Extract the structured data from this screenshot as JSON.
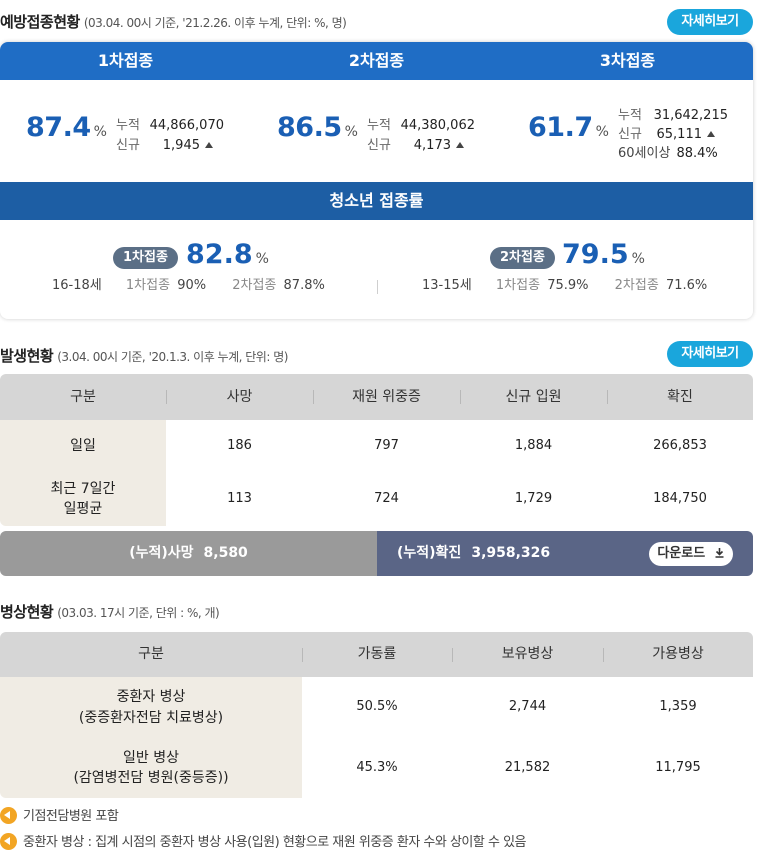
{
  "vaccination": {
    "title": "예방접종현황",
    "subtitle": "(03.04. 00시 기준, '21.2.26. 이후 누계, 단위: %, 명)",
    "more_label": "자세히보기",
    "doses": [
      {
        "header": "1차접종",
        "percent": "87.4",
        "unit": "%",
        "cum_label": "누적",
        "cum": "44,866,070",
        "new_label": "신규",
        "new": "1,945"
      },
      {
        "header": "2차접종",
        "percent": "86.5",
        "unit": "%",
        "cum_label": "누적",
        "cum": "44,380,062",
        "new_label": "신규",
        "new": "4,173"
      },
      {
        "header": "3차접종",
        "percent": "61.7",
        "unit": "%",
        "cum_label": "누적",
        "cum": "31,642,215",
        "new_label": "신규",
        "new": "65,111",
        "extra_label": "60세이상",
        "extra": "88.4%"
      }
    ],
    "teen": {
      "title": "청소년 접종률",
      "groups": [
        {
          "pill": "1차접종",
          "percent": "82.8",
          "unit": "%",
          "age": "16-18세",
          "d1_label": "1차접종",
          "d1": "90%",
          "d2_label": "2차접종",
          "d2": "87.8%"
        },
        {
          "pill": "2차접종",
          "percent": "79.5",
          "unit": "%",
          "age": "13-15세",
          "d1_label": "1차접종",
          "d1": "75.9%",
          "d2_label": "2차접종",
          "d2": "71.6%"
        }
      ]
    }
  },
  "occurrence": {
    "title": "발생현황",
    "subtitle": "(3.04. 00시 기준, '20.1.3. 이후 누계, 단위: 명)",
    "more_label": "자세히보기",
    "headers": [
      "구분",
      "사망",
      "재원 위중증",
      "신규 입원",
      "확진"
    ],
    "rows": [
      {
        "label": "일일",
        "values": [
          "186",
          "797",
          "1,884",
          "266,853"
        ]
      },
      {
        "label_line1": "최근 7일간",
        "label_line2": "일평균",
        "values": [
          "113",
          "724",
          "1,729",
          "184,750"
        ]
      }
    ],
    "total_death_label": "(누적)사망",
    "total_death": "8,580",
    "total_conf_label": "(누적)확진",
    "total_conf": "3,958,326",
    "download_label": "다운로드"
  },
  "beds": {
    "title": "병상현황",
    "subtitle": "(03.03. 17시 기준, 단위 : %, 개)",
    "headers": [
      "구분",
      "가동률",
      "보유병상",
      "가용병상"
    ],
    "rows": [
      {
        "line1": "중환자 병상",
        "line2": "(중증환자전담 치료병상)",
        "values": [
          "50.5%",
          "2,744",
          "1,359"
        ]
      },
      {
        "line1": "일반 병상",
        "line2": "(감염병전담 병원(중등증))",
        "values": [
          "45.3%",
          "21,582",
          "11,795"
        ]
      }
    ]
  },
  "notes": [
    "기점전담병원 포함",
    "중환자 병상 : 집계 시점의 중환자 병상 사용(입원) 현황으로 재원 위중증 환자 수와 상이할 수 있음"
  ],
  "colors": {
    "accent": "#1f6dc5",
    "button": "#1aa6dc",
    "percent": "#1a5fb4",
    "note_icon": "#f2a524"
  },
  "icons": {
    "new_indicator": "triangle-up-icon",
    "download": "download-icon",
    "note": "speaker-icon"
  }
}
